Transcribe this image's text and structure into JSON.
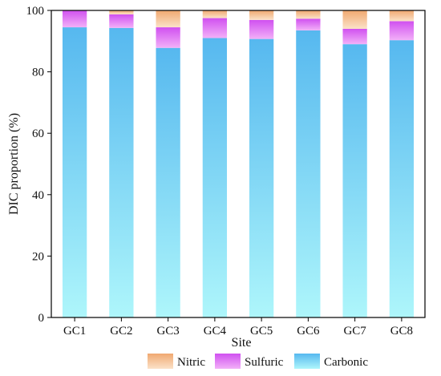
{
  "chart_data": {
    "type": "bar",
    "stacked": true,
    "categories": [
      "GC1",
      "GC2",
      "GC3",
      "GC4",
      "GC5",
      "GC6",
      "GC7",
      "GC8"
    ],
    "series": [
      {
        "name": "Carbonic",
        "values": [
          94.5,
          94.3,
          87.8,
          91.0,
          90.7,
          93.5,
          89.0,
          90.3
        ]
      },
      {
        "name": "Sulfuric",
        "values": [
          5.5,
          4.4,
          6.7,
          6.5,
          6.2,
          3.8,
          5.0,
          6.2
        ]
      },
      {
        "name": "Nitric",
        "values": [
          0.0,
          1.3,
          5.5,
          2.5,
          3.1,
          2.7,
          6.0,
          3.5
        ]
      }
    ],
    "xlabel": "Site",
    "ylabel": "DIC proportion (%)",
    "ylim": [
      0,
      100
    ],
    "yticks": [
      0,
      20,
      40,
      60,
      80,
      100
    ],
    "grid": false,
    "legend_position": "bottom",
    "legend_order": [
      "Nitric",
      "Sulfuric",
      "Carbonic"
    ],
    "colors": {
      "Carbonic_top": "#56b8ef",
      "Carbonic_bottom": "#aef6fb",
      "Sulfuric_top": "#d050f0",
      "Sulfuric_bottom": "#f2b0f8",
      "Nitric_top": "#f0a870",
      "Nitric_bottom": "#fbe2c8"
    }
  }
}
